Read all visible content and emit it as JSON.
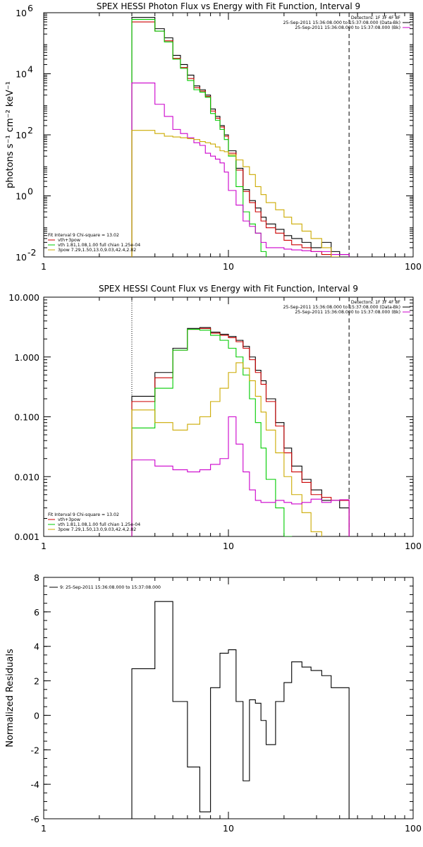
{
  "chart_data": [
    {
      "type": "line",
      "title": "SPEX HESSI Photon Flux vs Energy with Fit Function, Interval 9",
      "ylabel": "photons s⁻¹ cm⁻² keV⁻¹",
      "xlabel": "",
      "xscale": "log",
      "yscale": "log",
      "xlim": [
        1,
        100
      ],
      "ylim": [
        0.01,
        1000000
      ],
      "x_ticks": [
        {
          "v": 1,
          "label": "1"
        },
        {
          "v": 10,
          "label": "10"
        },
        {
          "v": 100,
          "label": "100"
        }
      ],
      "y_ticks": [
        {
          "v": 0.01,
          "label": "10",
          "exp": "-2"
        },
        {
          "v": 1,
          "label": "10",
          "exp": "0"
        },
        {
          "v": 100,
          "label": "10",
          "exp": "2"
        },
        {
          "v": 10000,
          "label": "10",
          "exp": "4"
        },
        {
          "v": 1000000,
          "label": "10",
          "exp": "6"
        }
      ],
      "vlines": [
        {
          "x": 3.0,
          "style": "dotted"
        },
        {
          "x": 45.0,
          "style": "dashed"
        }
      ],
      "legend_topright": [
        {
          "text": "Detectors: 1F 3F 4F 8F",
          "color": "#000000"
        },
        {
          "text": "25-Sep-2011 15:36:08.000 to 15:37:08.000 (Data-Bk)",
          "color": "#000000"
        },
        {
          "text": "25-Sep-2011 15:36:08.000 to 15:37:08.000 (Bk)",
          "color": "#cc00cc"
        }
      ],
      "legend_bottomleft": [
        {
          "text": "Fit Interval 9   Chi-square = 13.02",
          "color": "#000000"
        },
        {
          "text": "vth+3pow",
          "color": "#cc0000"
        },
        {
          "text": "vth 1.81,1.08,1.00   full chian 1.25e-04",
          "color": "#00cc00"
        },
        {
          "text": "3pow 7.29,1.50,13.0,9.03,42.4,2.82",
          "color": "#ccaa00"
        }
      ],
      "bin_edges": [
        3,
        3.5,
        4,
        4.5,
        5,
        5.5,
        6,
        6.5,
        7,
        7.5,
        8,
        8.5,
        9,
        9.5,
        10,
        11,
        12,
        13,
        14,
        15,
        16,
        18,
        20,
        22,
        25,
        28,
        32,
        36,
        40,
        45
      ],
      "series": [
        {
          "color": "#000000",
          "values": [
            700000,
            700000,
            300000,
            150000,
            40000,
            20000,
            9000,
            4000,
            3000,
            2000,
            700,
            400,
            200,
            100,
            30,
            8,
            1.6,
            0.7,
            0.4,
            0.2,
            0.12,
            0.08,
            0.05,
            0.04,
            0.03,
            0.02,
            0.03,
            0.015,
            0.012
          ]
        },
        {
          "color": "#cc0000",
          "values": [
            500000,
            500000,
            250000,
            120000,
            32000,
            16000,
            7000,
            3500,
            2700,
            1800,
            600,
            350,
            180,
            90,
            25,
            7,
            1.4,
            0.6,
            0.3,
            0.15,
            0.09,
            0.06,
            0.035,
            0.025,
            0.02,
            0.015,
            0.012,
            0.01,
            0.008
          ]
        },
        {
          "color": "#00cc00",
          "values": [
            600000,
            600000,
            250000,
            110000,
            30000,
            15000,
            6000,
            3000,
            2500,
            1700,
            500,
            300,
            150,
            70,
            20,
            2,
            0.3,
            0.12,
            0.06,
            0.015,
            0.008,
            0.005,
            0.004,
            0.004,
            0.004,
            0.004,
            0.004,
            0.004,
            0.004
          ]
        },
        {
          "color": "#cc00cc",
          "values": [
            5000,
            5000,
            1000,
            400,
            150,
            110,
            80,
            55,
            45,
            25,
            20,
            16,
            12,
            6,
            1.5,
            0.5,
            0.15,
            0.1,
            0.06,
            0.03,
            0.02,
            0.02,
            0.018,
            0.017,
            0.016,
            0.015,
            0.015,
            0.012,
            0.012
          ]
        },
        {
          "color": "#ccaa00",
          "values": [
            140,
            140,
            110,
            90,
            85,
            80,
            75,
            70,
            60,
            55,
            50,
            40,
            30,
            28,
            22,
            15,
            9,
            5,
            2,
            1.1,
            0.6,
            0.35,
            0.2,
            0.12,
            0.07,
            0.04,
            0.02,
            0.01,
            0.006
          ]
        }
      ]
    },
    {
      "type": "line",
      "title": "SPEX HESSI Count Flux vs Energy with Fit Function, Interval 9",
      "ylabel": "",
      "xlabel": "",
      "xscale": "log",
      "yscale": "log",
      "xlim": [
        1,
        100
      ],
      "ylim": [
        0.001,
        10
      ],
      "x_ticks": [
        {
          "v": 1,
          "label": "1"
        },
        {
          "v": 10,
          "label": "10"
        },
        {
          "v": 100,
          "label": "100"
        }
      ],
      "y_ticks": [
        {
          "v": 0.001,
          "label": "0.001"
        },
        {
          "v": 0.01,
          "label": "0.010"
        },
        {
          "v": 0.1,
          "label": "0.100"
        },
        {
          "v": 1,
          "label": "1.000"
        },
        {
          "v": 10,
          "label": "10.000"
        }
      ],
      "vlines": [
        {
          "x": 3.0,
          "style": "dotted"
        },
        {
          "x": 45.0,
          "style": "dashed"
        }
      ],
      "legend_topright": [
        {
          "text": "Detectors: 1F 3F 4F 8F",
          "color": "#000000"
        },
        {
          "text": "25-Sep-2011 15:36:08.000 to 15:37:08.000 (Data-Bk)",
          "color": "#000000"
        },
        {
          "text": "25-Sep-2011 15:36:08.000 to 15:37:08.000 (Bk)",
          "color": "#cc00cc"
        }
      ],
      "legend_bottomleft": [
        {
          "text": "Fit Interval 9   Chi-square = 13.02",
          "color": "#000000"
        },
        {
          "text": "vth+3pow",
          "color": "#cc0000"
        },
        {
          "text": "vth 1.81,1.08,1.00   full chian 1.25e-04",
          "color": "#00cc00"
        },
        {
          "text": "3pow 7.29,1.50,13.0,9.03,42.4,2.82",
          "color": "#ccaa00"
        }
      ],
      "bin_edges": [
        3,
        4,
        5,
        6,
        7,
        8,
        9,
        10,
        11,
        12,
        13,
        14,
        15,
        16,
        18,
        20,
        22,
        25,
        28,
        32,
        36,
        40,
        45
      ],
      "series": [
        {
          "color": "#000000",
          "values": [
            0.22,
            0.55,
            1.4,
            3.0,
            3.1,
            2.6,
            2.4,
            2.2,
            1.9,
            1.5,
            1.0,
            0.6,
            0.4,
            0.2,
            0.08,
            0.03,
            0.015,
            0.009,
            0.006,
            0.004,
            0.004,
            0.003
          ]
        },
        {
          "color": "#cc0000",
          "values": [
            0.18,
            0.45,
            1.3,
            2.9,
            3.0,
            2.5,
            2.3,
            2.1,
            1.8,
            1.4,
            0.9,
            0.55,
            0.35,
            0.18,
            0.07,
            0.025,
            0.012,
            0.008,
            0.005,
            0.0045,
            0.004,
            0.004
          ]
        },
        {
          "color": "#00cc00",
          "values": [
            0.065,
            0.3,
            1.3,
            2.9,
            2.8,
            2.3,
            1.9,
            1.4,
            1.0,
            0.5,
            0.2,
            0.08,
            0.03,
            0.009,
            0.003,
            0.001,
            0.0009,
            0.0009,
            0.0009,
            0.0009,
            0.0009,
            0.0009
          ]
        },
        {
          "color": "#ccaa00",
          "values": [
            0.13,
            0.08,
            0.06,
            0.075,
            0.1,
            0.18,
            0.3,
            0.55,
            0.8,
            0.65,
            0.4,
            0.22,
            0.12,
            0.06,
            0.025,
            0.01,
            0.005,
            0.0025,
            0.0012,
            0.0009,
            0.0009,
            0.0009
          ]
        },
        {
          "color": "#cc00cc",
          "values": [
            0.019,
            0.015,
            0.013,
            0.012,
            0.013,
            0.016,
            0.02,
            0.1,
            0.035,
            0.012,
            0.006,
            0.004,
            0.0037,
            0.0037,
            0.004,
            0.0037,
            0.0035,
            0.0037,
            0.0042,
            0.0037,
            0.004,
            0.0041
          ]
        }
      ]
    },
    {
      "type": "line",
      "title": "",
      "ylabel": "Normalized Residuals",
      "xlabel": "",
      "xscale": "log",
      "yscale": "linear",
      "xlim": [
        1,
        100
      ],
      "ylim": [
        -6,
        8
      ],
      "x_ticks": [
        {
          "v": 1,
          "label": "1"
        },
        {
          "v": 10,
          "label": "10"
        },
        {
          "v": 100,
          "label": "100"
        }
      ],
      "y_ticks": [
        {
          "v": -6,
          "label": "-6"
        },
        {
          "v": -4,
          "label": "-4"
        },
        {
          "v": -2,
          "label": "-2"
        },
        {
          "v": 0,
          "label": "0"
        },
        {
          "v": 2,
          "label": "2"
        },
        {
          "v": 4,
          "label": "4"
        },
        {
          "v": 6,
          "label": "6"
        },
        {
          "v": 8,
          "label": "8"
        }
      ],
      "vlines": [],
      "legend_topleft": [
        {
          "text": "9: 25-Sep-2011 15:36:08.000 to 15:37:08.000",
          "color": "#000000"
        }
      ],
      "bin_edges": [
        3,
        4,
        5,
        6,
        7,
        8,
        9,
        10,
        11,
        12,
        13,
        14,
        15,
        16,
        18,
        20,
        22,
        25,
        28,
        32,
        36,
        40,
        45
      ],
      "series": [
        {
          "color": "#000000",
          "values": [
            2.7,
            6.6,
            0.8,
            -3.0,
            -5.6,
            1.6,
            3.6,
            3.8,
            0.8,
            -3.8,
            0.9,
            0.7,
            -0.3,
            -1.7,
            0.8,
            1.9,
            3.1,
            2.8,
            2.6,
            2.3,
            1.6,
            1.6
          ]
        }
      ]
    }
  ]
}
